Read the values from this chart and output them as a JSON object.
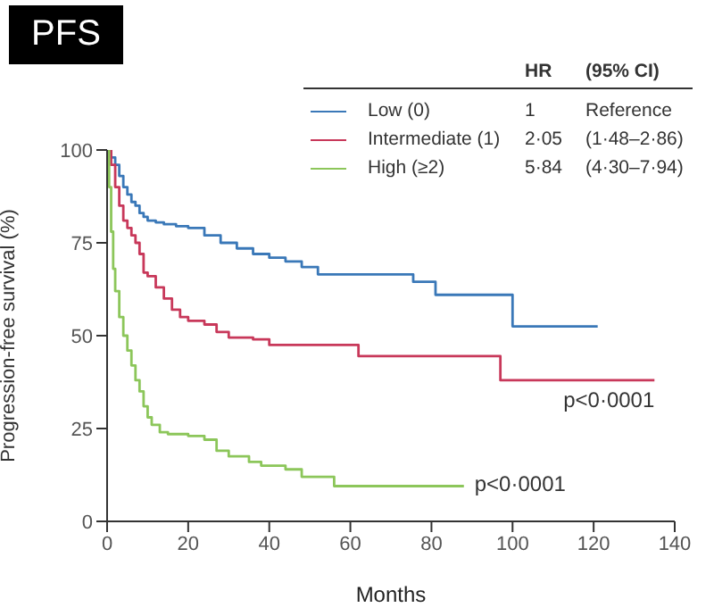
{
  "chart_data": {
    "type": "step",
    "title": "PFS",
    "xlabel": "Months",
    "ylabel": "Progression-free survival (%)",
    "xlim": [
      0,
      140
    ],
    "xticks": [
      0,
      20,
      40,
      60,
      80,
      100,
      120,
      140
    ],
    "ylim": [
      0,
      100
    ],
    "yticks": [
      0,
      25,
      50,
      75,
      100
    ],
    "legend": "top right",
    "legend_title": "HR    (95% CI)",
    "marker": "none",
    "line_style": "solid",
    "series": [
      {
        "name": "Low (0)",
        "color": "#3a78b8",
        "x": [
          0,
          1,
          2,
          3,
          4,
          5,
          6,
          7,
          8,
          9,
          10,
          12,
          14,
          17,
          20,
          24,
          28,
          32,
          36,
          40,
          44,
          48,
          52,
          60,
          75.5,
          81,
          100,
          121
        ],
        "values": [
          100,
          98,
          96,
          93,
          90,
          88,
          86,
          85,
          83,
          82,
          81,
          80.5,
          80,
          79.5,
          79,
          77,
          75,
          73.5,
          72,
          71,
          70,
          68.5,
          66.5,
          66.5,
          64.5,
          61,
          52.5,
          52.5
        ]
      },
      {
        "name": "Intermediate (1)",
        "color": "#c8385a",
        "x": [
          0,
          1,
          2,
          3,
          4,
          5,
          6,
          7,
          8,
          9,
          10,
          12,
          14,
          16,
          18,
          20,
          24,
          27,
          30,
          36,
          40,
          62,
          97,
          135
        ],
        "values": [
          100,
          96,
          90,
          85,
          81,
          79,
          77,
          75,
          72,
          67,
          66,
          63,
          60,
          57,
          55,
          54,
          53,
          51,
          49.5,
          49,
          47.5,
          44.5,
          38,
          38
        ]
      },
      {
        "name": "High (≥2)",
        "color": "#8cc65a",
        "x": [
          0,
          0.5,
          1,
          1.5,
          2,
          3,
          4,
          5,
          6,
          7,
          8,
          9,
          10,
          11,
          13,
          15,
          20,
          24,
          27,
          30,
          35,
          38,
          44,
          48,
          56,
          88
        ],
        "values": [
          100,
          90,
          78,
          68,
          62,
          55,
          50,
          46,
          42,
          38,
          35,
          31,
          28,
          26,
          24,
          23.5,
          23,
          22,
          19,
          17.5,
          16,
          15,
          14,
          12,
          9.5,
          9.5
        ]
      }
    ],
    "annotations": [
      "1  Reference",
      "2·05  (1·48–2·86)",
      "5·84  (4·30–7·94)",
      {
        "text": "p<0·0001",
        "x": 135,
        "y": 38
      },
      {
        "text": "p<0·0001",
        "x": 88,
        "y": 9.5
      }
    ]
  }
}
